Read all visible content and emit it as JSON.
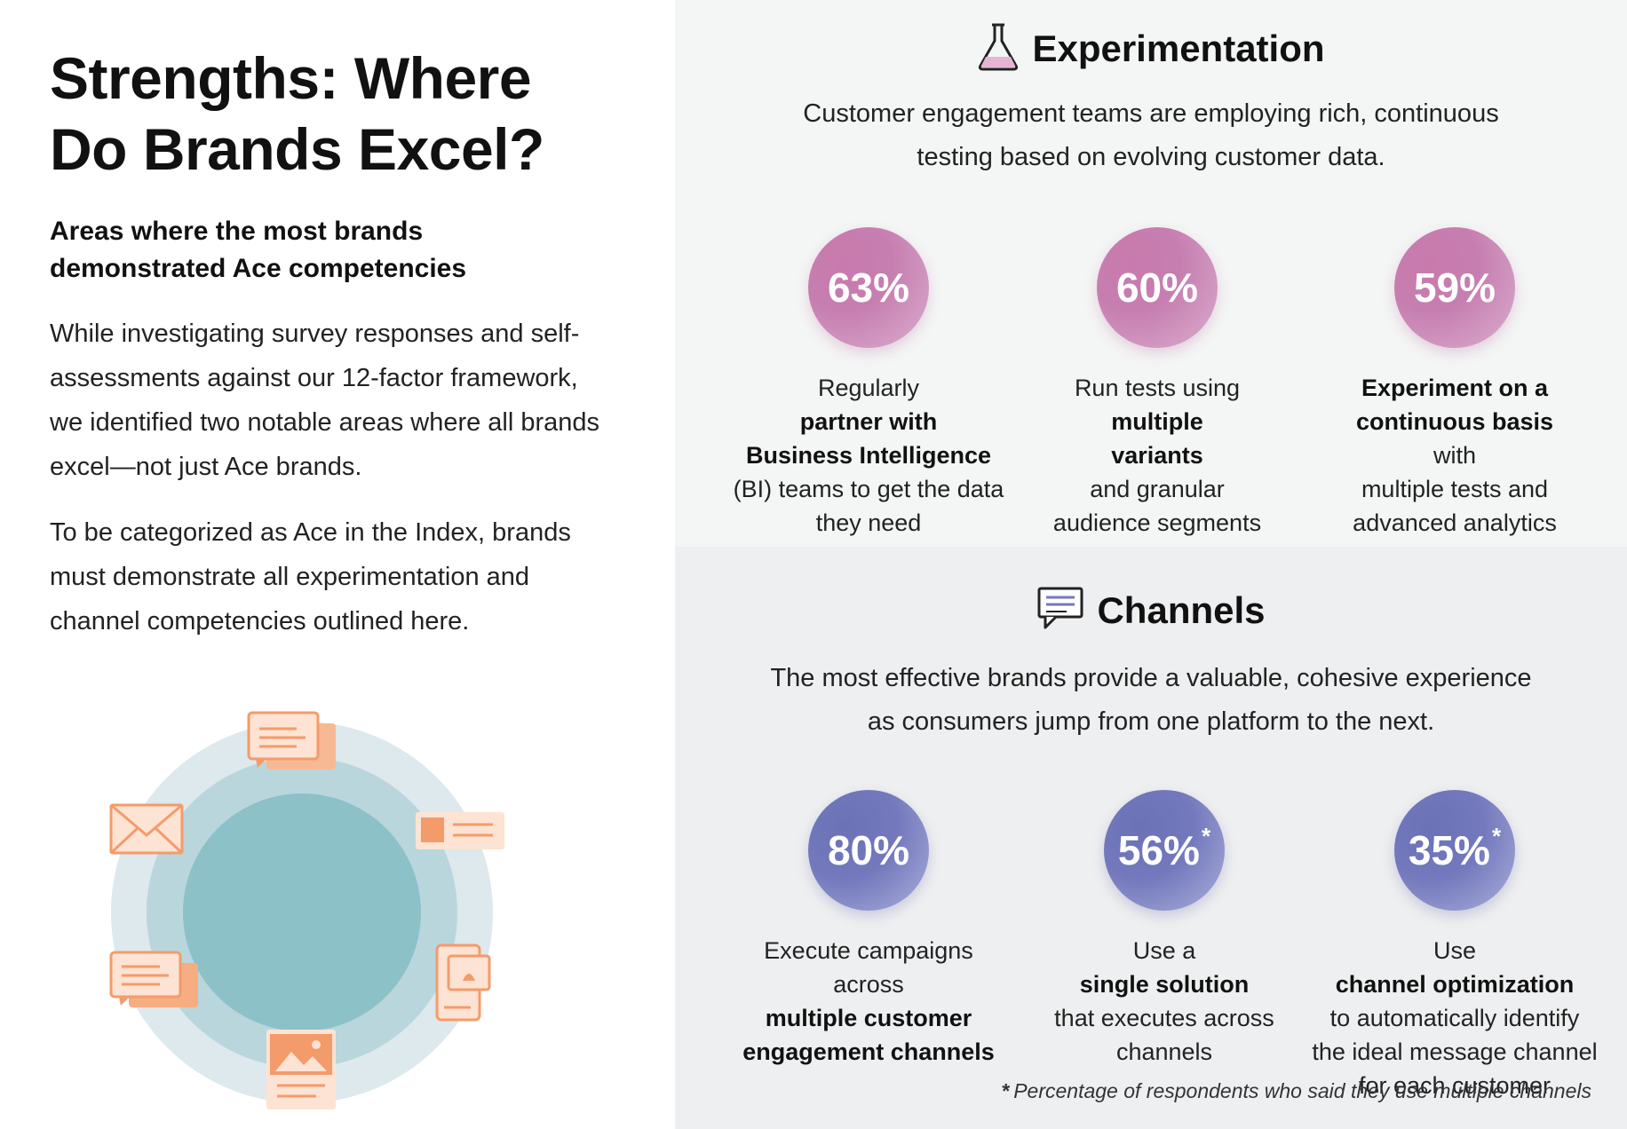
{
  "left": {
    "title_lines": [
      "Strengths: Where",
      "Do Brands Excel?"
    ],
    "subhead_lines": [
      "Areas where the most brands",
      "demonstrated Ace competencies"
    ],
    "para1_lines": [
      "While investigating survey responses and self-",
      "assessments against our 12-factor framework,",
      "we identified two notable areas where all brands",
      "excel—not just Ace brands."
    ],
    "para2_lines": [
      "To be categorized as Ace in the Index, brands",
      "must demonstrate all experimentation and",
      "channel competencies outlined here."
    ],
    "illustration_icons": [
      "chat-icon",
      "message-card-icon",
      "mobile-notification-icon",
      "image-post-icon",
      "chat-icon",
      "envelope-icon"
    ]
  },
  "experimentation": {
    "icon": "flask-icon",
    "title": "Experimentation",
    "desc_lines": [
      "Customer engagement teams are employing rich, continuous",
      "testing based on evolving customer data."
    ],
    "accent": "#c67eb0",
    "stats": [
      {
        "value": "63%",
        "caption": [
          {
            "pre": "Regularly ",
            "bold": "partner with",
            "post": ""
          },
          {
            "pre": "",
            "bold": "Business Intelligence",
            "post": ""
          },
          {
            "pre": "(BI) teams to get the data",
            "bold": "",
            "post": ""
          },
          {
            "pre": "they need",
            "bold": "",
            "post": ""
          }
        ]
      },
      {
        "value": "60%",
        "caption": [
          {
            "pre": "Run tests using ",
            "bold": "multiple",
            "post": ""
          },
          {
            "pre": "",
            "bold": "variants",
            "post": " and granular"
          },
          {
            "pre": "audience segments",
            "bold": "",
            "post": ""
          }
        ]
      },
      {
        "value": "59%",
        "caption": [
          {
            "pre": "",
            "bold": "Experiment on a",
            "post": ""
          },
          {
            "pre": "",
            "bold": "continuous basis",
            "post": " with"
          },
          {
            "pre": "multiple tests and",
            "bold": "",
            "post": ""
          },
          {
            "pre": "advanced analytics",
            "bold": "",
            "post": ""
          }
        ]
      }
    ]
  },
  "channels": {
    "icon": "chat-bubble-icon",
    "title": "Channels",
    "desc_lines": [
      "The most effective brands provide a valuable, cohesive experience",
      "as consumers jump from one platform to the next."
    ],
    "accent": "#7479bd",
    "stats": [
      {
        "value": "80%",
        "mark": "",
        "caption": [
          {
            "pre": "Execute campaigns",
            "bold": "",
            "post": ""
          },
          {
            "pre": "across ",
            "bold": "multiple customer",
            "post": ""
          },
          {
            "pre": "",
            "bold": "engagement channels",
            "post": ""
          }
        ]
      },
      {
        "value": "56%",
        "mark": "*",
        "caption": [
          {
            "pre": "Use a ",
            "bold": "single solution",
            "post": ""
          },
          {
            "pre": "that executes across",
            "bold": "",
            "post": ""
          },
          {
            "pre": "channels",
            "bold": "",
            "post": ""
          }
        ]
      },
      {
        "value": "35%",
        "mark": "*",
        "caption": [
          {
            "pre": "Use ",
            "bold": "channel optimization",
            "post": ""
          },
          {
            "pre": "to automatically identify",
            "bold": "",
            "post": ""
          },
          {
            "pre": "the ideal message channel",
            "bold": "",
            "post": ""
          },
          {
            "pre": "for each customer",
            "bold": "",
            "post": ""
          }
        ]
      }
    ],
    "footnote_mark": "*",
    "footnote": "Percentage of respondents who said they use multiple channels"
  }
}
